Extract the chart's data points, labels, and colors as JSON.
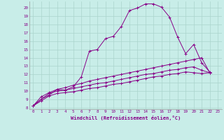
{
  "xlabel": "Windchill (Refroidissement éolien,°C)",
  "background_color": "#c8ede8",
  "line_color": "#880088",
  "grid_color": "#aad4cc",
  "xlim": [
    -0.5,
    23.5
  ],
  "ylim": [
    7.8,
    20.8
  ],
  "xticks": [
    0,
    1,
    2,
    3,
    4,
    5,
    6,
    7,
    8,
    9,
    10,
    11,
    12,
    13,
    14,
    15,
    16,
    17,
    18,
    19,
    20,
    21,
    22,
    23
  ],
  "yticks": [
    8,
    9,
    10,
    11,
    12,
    13,
    14,
    15,
    16,
    17,
    18,
    19,
    20
  ],
  "series": [
    [
      8.2,
      9.0,
      9.5,
      10.2,
      10.1,
      10.5,
      11.7,
      14.8,
      15.0,
      16.3,
      16.6,
      17.8,
      19.7,
      20.0,
      20.5,
      20.5,
      20.1,
      18.9,
      16.5,
      14.5,
      15.6,
      13.4,
      12.3
    ],
    [
      8.2,
      9.3,
      9.8,
      10.2,
      10.4,
      10.7,
      10.9,
      11.2,
      11.4,
      11.6,
      11.8,
      12.0,
      12.2,
      12.4,
      12.6,
      12.8,
      13.0,
      13.2,
      13.4,
      13.6,
      13.8,
      14.0,
      12.2
    ],
    [
      8.2,
      9.0,
      9.7,
      10.0,
      10.1,
      10.3,
      10.5,
      10.7,
      10.9,
      11.0,
      11.2,
      11.4,
      11.6,
      11.8,
      12.0,
      12.1,
      12.3,
      12.5,
      12.6,
      12.8,
      12.9,
      12.5,
      12.2
    ],
    [
      8.2,
      8.8,
      9.4,
      9.7,
      9.8,
      9.9,
      10.1,
      10.3,
      10.4,
      10.6,
      10.8,
      10.9,
      11.1,
      11.3,
      11.5,
      11.7,
      11.8,
      12.0,
      12.1,
      12.3,
      12.2,
      12.1,
      12.2
    ]
  ]
}
